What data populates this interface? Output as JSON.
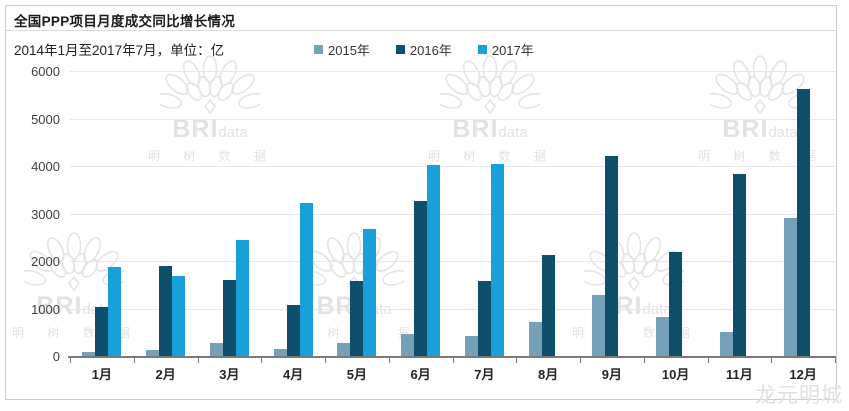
{
  "title": "全国PPP项目月度成交同比增长情况",
  "subtitle": "2014年1月至2017年7月，单位：亿",
  "watermark": {
    "brand": "BRI",
    "brand_suffix": "data",
    "cjk": "明 树 数 据",
    "corner": "龙元明城"
  },
  "colors": {
    "series_2015": "#74a1b7",
    "series_2016": "#0f4f6c",
    "series_2017": "#19a0da",
    "gridline": "#e7e7e7",
    "axis": "#7a7a7a"
  },
  "chart_data": {
    "type": "bar",
    "title": "全国PPP项目月度成交同比增长情况",
    "subtitle": "2014年1月至2017年7月，单位：亿",
    "xlabel": "",
    "ylabel": "亿",
    "categories": [
      "1月",
      "2月",
      "3月",
      "4月",
      "5月",
      "6月",
      "7月",
      "8月",
      "9月",
      "10月",
      "11月",
      "12月"
    ],
    "series": [
      {
        "name": "2015年",
        "color": "#74a1b7",
        "values": [
          80,
          130,
          270,
          150,
          270,
          460,
          420,
          710,
          1280,
          820,
          510,
          2900
        ]
      },
      {
        "name": "2016年",
        "color": "#0f4f6c",
        "values": [
          1030,
          1890,
          1590,
          1080,
          1570,
          3270,
          1570,
          2130,
          4220,
          2200,
          3840,
          5630
        ]
      },
      {
        "name": "2017年",
        "color": "#19a0da",
        "values": [
          1880,
          1680,
          2450,
          3220,
          2680,
          4020,
          4050,
          null,
          null,
          null,
          null,
          null
        ]
      }
    ],
    "ylim": [
      0,
      6000
    ],
    "yticks": [
      0,
      1000,
      2000,
      3000,
      4000,
      5000,
      6000
    ],
    "grid": "horizontal",
    "legend_position": "top"
  }
}
